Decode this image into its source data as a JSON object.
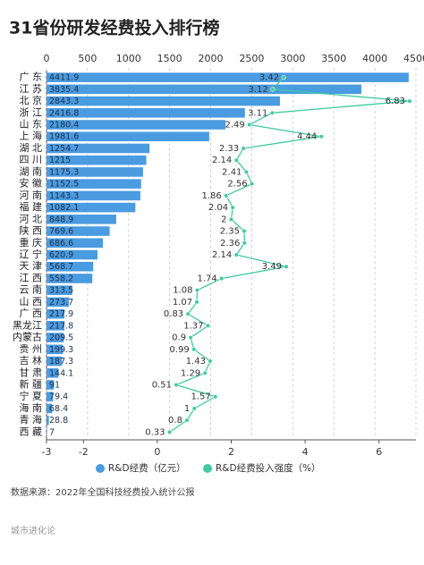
{
  "chart_data": {
    "type": "bar",
    "orientation": "horizontal",
    "title": "31省份研发经费投入排行榜",
    "categories": [
      "广 东",
      "江 苏",
      "北 京",
      "浙 江",
      "山 东",
      "上 海",
      "湖 北",
      "四 川",
      "湖 南",
      "安 徽",
      "河 南",
      "福 建",
      "河 北",
      "陕 西",
      "重 庆",
      "辽 宁",
      "天 津",
      "江 西",
      "云 南",
      "山 西",
      "广 西",
      "黑龙江",
      "内蒙古",
      "贵 州",
      "吉 林",
      "甘 肃",
      "新 疆",
      "宁 夏",
      "海 南",
      "青 海",
      "西 藏"
    ],
    "series": [
      {
        "name": "R&D经费（亿元）",
        "type": "bar",
        "color": "#4b9be0",
        "values": [
          4411.9,
          3835.4,
          2843.3,
          2416.8,
          2180.4,
          1981.6,
          1254.7,
          1215,
          1175.3,
          1152.5,
          1143.3,
          1082.1,
          848.9,
          769.6,
          686.6,
          620.9,
          568.7,
          558.2,
          313.5,
          273.7,
          217.9,
          217.8,
          209.5,
          199.3,
          187.3,
          144.1,
          91,
          79.4,
          68.4,
          28.8,
          7
        ]
      },
      {
        "name": "R&D经费投入强度（%）",
        "type": "line",
        "axis": "x2",
        "color": "#3fcb9f",
        "values": [
          3.42,
          3.12,
          6.83,
          3.11,
          2.49,
          4.44,
          2.33,
          2.14,
          2.41,
          2.56,
          1.86,
          2.04,
          2,
          2.35,
          2.36,
          2.14,
          3.49,
          1.74,
          1.08,
          1.07,
          0.83,
          1.37,
          0.9,
          0.99,
          1.43,
          1.29,
          0.51,
          1.57,
          1,
          0.8,
          0.33
        ]
      }
    ],
    "xlim": [
      0,
      4500
    ],
    "xticks": [
      0,
      500,
      1000,
      1500,
      2000,
      2500,
      3000,
      3500,
      4000,
      4500
    ],
    "x2lim": [
      -3,
      7
    ],
    "x2ticks": [
      -3,
      -2,
      0,
      2,
      4,
      6
    ],
    "grid": true,
    "legend": "bottom",
    "source": "数据来源：2022年全国科技经费投入统计公报",
    "footer": "城市进化论"
  }
}
